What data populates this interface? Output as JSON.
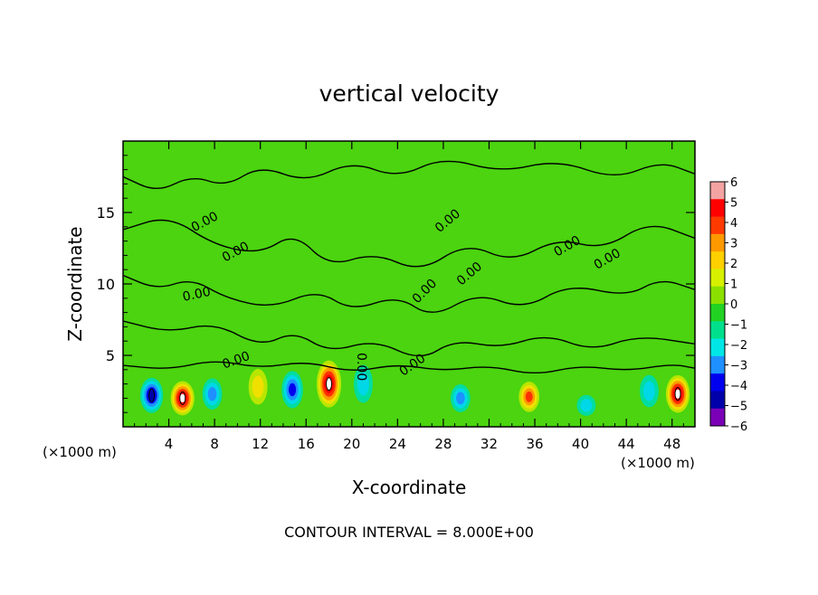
{
  "chart_data": {
    "type": "heatmap",
    "title": "vertical velocity",
    "xlabel": "X-coordinate",
    "ylabel": "Z-coordinate",
    "x_unit": "(×1000 m)",
    "y_unit": "(×1000 m)",
    "xlim": [
      0,
      50
    ],
    "ylim": [
      0,
      20
    ],
    "x_ticks": [
      4,
      8,
      12,
      16,
      20,
      24,
      28,
      32,
      36,
      40,
      44,
      48
    ],
    "x_tick_labels": [
      "4",
      "8",
      "12",
      "16",
      "20",
      "24",
      "28",
      "32",
      "36",
      "40",
      "44",
      "48"
    ],
    "y_ticks": [
      5,
      10,
      15
    ],
    "y_tick_labels": [
      "5",
      "10",
      "15"
    ],
    "colorbar": {
      "min": -6,
      "max": 6,
      "ticks": [
        6,
        5,
        4,
        3,
        2,
        1,
        0,
        -1,
        -2,
        -3,
        -4,
        -5,
        -6
      ],
      "tick_labels": [
        "6",
        "5",
        "4",
        "3",
        "2",
        "1",
        "0",
        "−1",
        "−2",
        "−3",
        "−4",
        "−5",
        "−6"
      ],
      "colors": [
        "#f4a3a3",
        "#ff0000",
        "#ff3a00",
        "#ff9900",
        "#ffd000",
        "#d6f000",
        "#8ce000",
        "#22d222",
        "#00e08c",
        "#00e6e6",
        "#1e90ff",
        "#0000ee",
        "#0000aa",
        "#7a00b8"
      ]
    },
    "contour_label": "0.00",
    "contour_interval_text": "CONTOUR INTERVAL = 8.000E+00",
    "cells": [
      {
        "x": 2.5,
        "z": 2.2,
        "w": -8
      },
      {
        "x": 5.2,
        "z": 2.0,
        "w": 9
      },
      {
        "x": 7.8,
        "z": 2.3,
        "w": -4
      },
      {
        "x": 11.8,
        "z": 2.8,
        "w": 3
      },
      {
        "x": 14.8,
        "z": 2.6,
        "w": -6
      },
      {
        "x": 18.0,
        "z": 3.0,
        "w": 10
      },
      {
        "x": 21.0,
        "z": 3.0,
        "w": -3
      },
      {
        "x": 29.5,
        "z": 2.0,
        "w": -4
      },
      {
        "x": 35.5,
        "z": 2.1,
        "w": 5
      },
      {
        "x": 40.5,
        "z": 1.5,
        "w": -3
      },
      {
        "x": 46.0,
        "z": 2.5,
        "w": -3
      },
      {
        "x": 48.5,
        "z": 2.3,
        "w": 9
      }
    ]
  }
}
